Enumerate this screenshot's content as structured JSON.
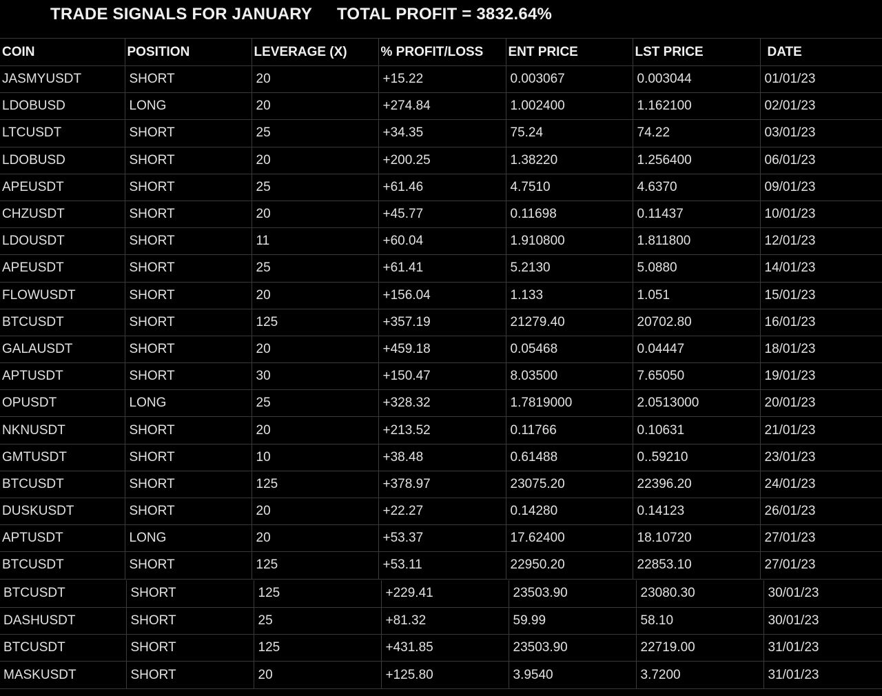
{
  "header": {
    "title": "TRADE SIGNALS FOR JANUARY",
    "total_profit": "TOTAL PROFIT = 3832.64%"
  },
  "columns": [
    "COIN",
    "POSITION",
    "LEVERAGE (X)",
    "% PROFIT/LOSS",
    "ENT PRICE",
    "LST PRICE",
    "DATE"
  ],
  "rows": [
    [
      "JASMYUSDT",
      "SHORT",
      "20",
      "+15.22",
      "0.003067",
      "0.003044",
      "01/01/23"
    ],
    [
      "LDOBUSD",
      "LONG",
      "20",
      "+274.84",
      "1.002400",
      "1.162100",
      "02/01/23"
    ],
    [
      "LTCUSDT",
      "SHORT",
      "25",
      "+34.35",
      "75.24",
      "74.22",
      "03/01/23"
    ],
    [
      "LDOBUSD",
      "SHORT",
      "20",
      "+200.25",
      "1.38220",
      "1.256400",
      "06/01/23"
    ],
    [
      "APEUSDT",
      "SHORT",
      "25",
      "+61.46",
      "4.7510",
      "4.6370",
      "09/01/23"
    ],
    [
      "CHZUSDT",
      "SHORT",
      "20",
      "+45.77",
      "0.11698",
      "0.11437",
      "10/01/23"
    ],
    [
      "LDOUSDT",
      "SHORT",
      "11",
      "+60.04",
      "1.910800",
      "1.811800",
      "12/01/23"
    ],
    [
      "APEUSDT",
      "SHORT",
      "25",
      "+61.41",
      "5.2130",
      "5.0880",
      "14/01/23"
    ],
    [
      "FLOWUSDT",
      "SHORT",
      "20",
      "+156.04",
      "1.133",
      "1.051",
      "15/01/23"
    ],
    [
      "BTCUSDT",
      "SHORT",
      "125",
      "+357.19",
      "21279.40",
      "20702.80",
      "16/01/23"
    ],
    [
      "GALAUSDT",
      "SHORT",
      "20",
      "+459.18",
      "0.05468",
      "0.04447",
      "18/01/23"
    ],
    [
      "APTUSDT",
      "SHORT",
      "30",
      "+150.47",
      "8.03500",
      "7.65050",
      "19/01/23"
    ],
    [
      "OPUSDT",
      "LONG",
      "25",
      "+328.32",
      "1.7819000",
      "2.0513000",
      "20/01/23"
    ],
    [
      "NKNUSDT",
      "SHORT",
      "20",
      "+213.52",
      "0.11766",
      "0.10631",
      "21/01/23"
    ],
    [
      "GMTUSDT",
      "SHORT",
      "10",
      "+38.48",
      "0.61488",
      "0..59210",
      "23/01/23"
    ],
    [
      "BTCUSDT",
      "SHORT",
      "125",
      "+378.97",
      "23075.20",
      "22396.20",
      "24/01/23"
    ],
    [
      "DUSKUSDT",
      "SHORT",
      "20",
      "+22.27",
      "0.14280",
      "0.14123",
      "26/01/23"
    ],
    [
      "APTUSDT",
      "LONG",
      "20",
      "+53.37",
      "17.62400",
      "18.10720",
      "27/01/23"
    ],
    [
      "BTCUSDT",
      "SHORT",
      "125",
      "+53.11",
      "22950.20",
      "22853.10",
      "27/01/23"
    ]
  ],
  "extra_rows": [
    [
      "BTCUSDT",
      "SHORT",
      "125",
      "+229.41",
      "23503.90",
      "23080.30",
      "30/01/23"
    ],
    [
      "DASHUSDT",
      "SHORT",
      "25",
      "+81.32",
      "59.99",
      "58.10",
      "30/01/23"
    ],
    [
      "BTCUSDT",
      "SHORT",
      "125",
      "+431.85",
      "23503.90",
      "22719.00",
      "31/01/23"
    ],
    [
      "MASKUSDT",
      "SHORT",
      "20",
      "+125.80",
      "3.9540",
      "3.7200",
      "31/01/23"
    ]
  ]
}
